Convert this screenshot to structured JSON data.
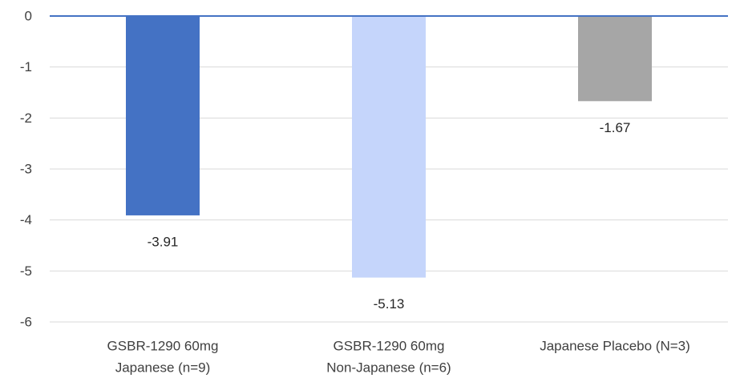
{
  "chart_data": {
    "type": "bar",
    "title": "",
    "xlabel": "",
    "ylabel": "",
    "ylim": [
      -6,
      0
    ],
    "yticks": [
      0,
      -1,
      -2,
      -3,
      -4,
      -5,
      -6
    ],
    "ytick_labels": [
      "0",
      "-1",
      "-2",
      "-3",
      "-4",
      "-5",
      "-6"
    ],
    "grid": true,
    "legend": "none",
    "categories": [
      [
        "GSBR-1290 60mg",
        "Japanese (n=9)"
      ],
      [
        "GSBR-1290 60mg",
        "Non-Japanese (n=6)"
      ],
      [
        "Japanese Placebo (N=3)"
      ]
    ],
    "values": [
      -3.91,
      -5.13,
      -1.67
    ],
    "data_labels": [
      "-3.91",
      "-5.13",
      "-1.67"
    ],
    "colors": [
      "#4472c4",
      "#c5d5fb",
      "#a6a6a6"
    ],
    "zero_line_color": "#4472c4"
  }
}
